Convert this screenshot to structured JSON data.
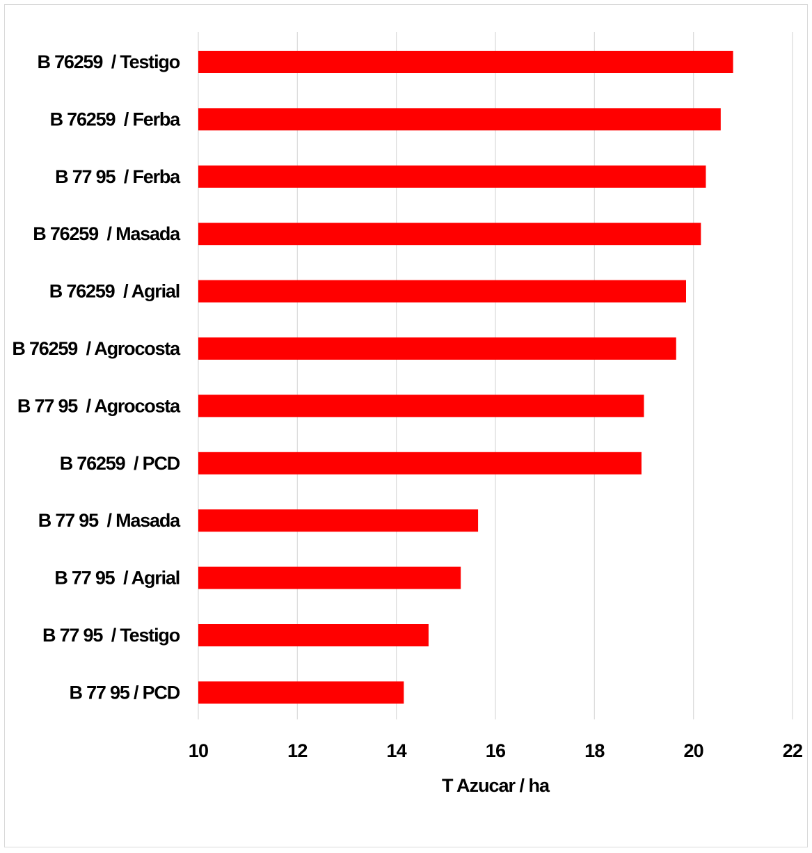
{
  "chart_data": {
    "type": "bar",
    "orientation": "horizontal",
    "title": "",
    "xlabel": "T Azucar / ha",
    "ylabel": "",
    "xlim": [
      10,
      22
    ],
    "xticks": [
      10,
      12,
      14,
      16,
      18,
      20,
      22
    ],
    "xtick_labels": [
      "10",
      "12",
      "14",
      "16",
      "18",
      "20",
      "22"
    ],
    "grid": "vertical",
    "legend": "none",
    "bar_color": "#ff0000",
    "categories": [
      "B 76259  / Testigo",
      "B 76259  / Ferba",
      "B 77 95  / Ferba",
      "B 76259  / Masada",
      "B 76259  / Agrial",
      "B 76259  / Agrocosta",
      "B 77 95  / Agrocosta",
      "B 76259  / PCD",
      "B 77 95  / Masada",
      "B 77 95  / Agrial",
      "B 77 95  / Testigo",
      "B 77 95 / PCD"
    ],
    "values": [
      20.8,
      20.55,
      20.25,
      20.15,
      19.85,
      19.65,
      19.0,
      18.95,
      15.65,
      15.3,
      14.65,
      14.15
    ]
  }
}
